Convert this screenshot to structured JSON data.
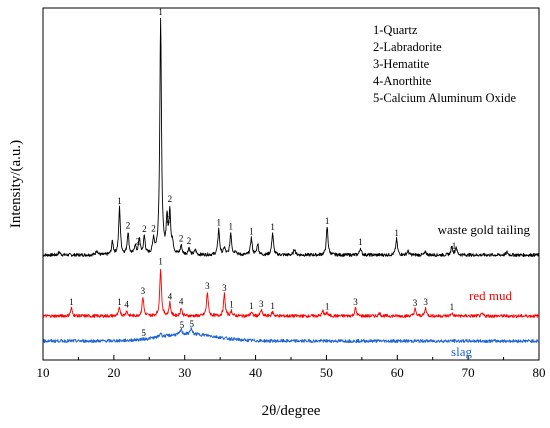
{
  "chart_data": {
    "type": "line",
    "xlabel": "2θ/degree",
    "ylabel": "Intensity/(a.u.)",
    "xlim": [
      10,
      80
    ],
    "x_ticks": [
      "10",
      "20",
      "30",
      "40",
      "50",
      "60",
      "70",
      "80"
    ],
    "legend": {
      "placement": "top-right",
      "entries": [
        "1-Quartz",
        "2-Labradorite",
        "3-Hematite",
        "4-Anorthite",
        "5-Calcium Aluminum Oxide"
      ]
    },
    "series": [
      {
        "name": "waste gold tailing",
        "color": "#000000",
        "baseline": 255,
        "peaks": [
          {
            "x": 12.3,
            "h": 3
          },
          {
            "x": 17.6,
            "h": 5
          },
          {
            "x": 19.8,
            "h": 13
          },
          {
            "x": 20.8,
            "h": 47
          },
          {
            "x": 22.0,
            "h": 22
          },
          {
            "x": 23.0,
            "h": 9
          },
          {
            "x": 23.6,
            "h": 16
          },
          {
            "x": 24.3,
            "h": 18
          },
          {
            "x": 25.6,
            "h": 15
          },
          {
            "x": 26.6,
            "h": 235
          },
          {
            "x": 27.5,
            "h": 34
          },
          {
            "x": 27.9,
            "h": 42
          },
          {
            "x": 28.3,
            "h": 10
          },
          {
            "x": 29.5,
            "h": 9
          },
          {
            "x": 30.6,
            "h": 7
          },
          {
            "x": 31.5,
            "h": 5
          },
          {
            "x": 34.8,
            "h": 26
          },
          {
            "x": 35.6,
            "h": 7
          },
          {
            "x": 36.5,
            "h": 22
          },
          {
            "x": 37.2,
            "h": 4
          },
          {
            "x": 39.4,
            "h": 17
          },
          {
            "x": 40.3,
            "h": 11
          },
          {
            "x": 42.4,
            "h": 22
          },
          {
            "x": 45.5,
            "h": 6
          },
          {
            "x": 50.1,
            "h": 28
          },
          {
            "x": 54.8,
            "h": 7
          },
          {
            "x": 59.9,
            "h": 16
          },
          {
            "x": 61.5,
            "h": 4
          },
          {
            "x": 64.0,
            "h": 3
          },
          {
            "x": 67.7,
            "h": 8
          },
          {
            "x": 68.3,
            "h": 8
          },
          {
            "x": 75.5,
            "h": 3
          }
        ],
        "peak_labels": [
          {
            "x": 20.8,
            "label": "1"
          },
          {
            "x": 22.0,
            "label": "2"
          },
          {
            "x": 23.4,
            "label": "2"
          },
          {
            "x": 24.3,
            "label": "2"
          },
          {
            "x": 25.6,
            "label": "2"
          },
          {
            "x": 26.6,
            "label": "1"
          },
          {
            "x": 27.7,
            "label": "2"
          },
          {
            "x": 27.9,
            "label": "2"
          },
          {
            "x": 29.5,
            "label": "2"
          },
          {
            "x": 30.6,
            "label": "2"
          },
          {
            "x": 34.8,
            "label": "1"
          },
          {
            "x": 36.5,
            "label": "1"
          },
          {
            "x": 39.4,
            "label": "1"
          },
          {
            "x": 42.4,
            "label": "1"
          },
          {
            "x": 50.1,
            "label": "1"
          },
          {
            "x": 54.8,
            "label": "1"
          },
          {
            "x": 59.9,
            "label": "1"
          },
          {
            "x": 68.0,
            "label": "1"
          }
        ]
      },
      {
        "name": "red mud",
        "color": "#ff0000",
        "baseline": 316,
        "peaks": [
          {
            "x": 14.0,
            "h": 8
          },
          {
            "x": 20.8,
            "h": 8
          },
          {
            "x": 21.8,
            "h": 5
          },
          {
            "x": 24.1,
            "h": 19
          },
          {
            "x": 26.6,
            "h": 48
          },
          {
            "x": 27.9,
            "h": 13
          },
          {
            "x": 29.5,
            "h": 8
          },
          {
            "x": 33.2,
            "h": 24
          },
          {
            "x": 35.6,
            "h": 22
          },
          {
            "x": 36.6,
            "h": 5
          },
          {
            "x": 39.4,
            "h": 4
          },
          {
            "x": 40.8,
            "h": 6
          },
          {
            "x": 42.4,
            "h": 4
          },
          {
            "x": 49.5,
            "h": 5
          },
          {
            "x": 50.1,
            "h": 3
          },
          {
            "x": 54.1,
            "h": 8
          },
          {
            "x": 57.5,
            "h": 3
          },
          {
            "x": 62.5,
            "h": 7
          },
          {
            "x": 64.0,
            "h": 8
          },
          {
            "x": 67.7,
            "h": 3
          },
          {
            "x": 72.0,
            "h": 2
          }
        ],
        "peak_labels": [
          {
            "x": 14.0,
            "label": "1"
          },
          {
            "x": 20.8,
            "label": "1"
          },
          {
            "x": 21.8,
            "label": "4"
          },
          {
            "x": 24.1,
            "label": "3"
          },
          {
            "x": 26.6,
            "label": "1"
          },
          {
            "x": 27.9,
            "label": "4"
          },
          {
            "x": 29.5,
            "label": "4"
          },
          {
            "x": 33.2,
            "label": "3"
          },
          {
            "x": 35.6,
            "label": "3"
          },
          {
            "x": 36.6,
            "label": "1"
          },
          {
            "x": 39.4,
            "label": "1"
          },
          {
            "x": 40.8,
            "label": "3"
          },
          {
            "x": 42.4,
            "label": "1"
          },
          {
            "x": 50.1,
            "label": "1"
          },
          {
            "x": 54.1,
            "label": "3"
          },
          {
            "x": 62.5,
            "label": "3"
          },
          {
            "x": 64.0,
            "label": "3"
          },
          {
            "x": 67.7,
            "label": "1"
          }
        ]
      },
      {
        "name": "slag",
        "color": "#1e64d2",
        "baseline": 341,
        "peaks": [
          {
            "x": 26.6,
            "h": 4
          },
          {
            "x": 29.5,
            "h": 5
          },
          {
            "x": 30.9,
            "h": 6
          }
        ],
        "hump": {
          "center": 30.5,
          "width": 5.5,
          "h": 7
        },
        "peak_labels": [
          {
            "x": 24.2,
            "label": "5"
          },
          {
            "x": 29.6,
            "label": "5"
          },
          {
            "x": 31.0,
            "label": "5"
          }
        ]
      }
    ]
  }
}
